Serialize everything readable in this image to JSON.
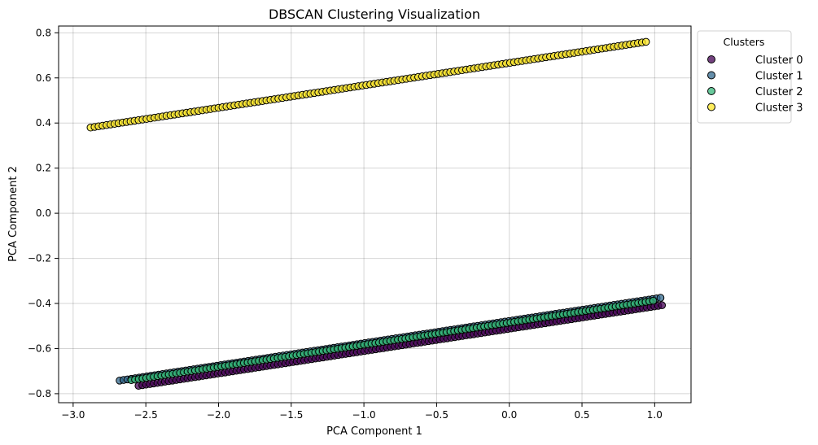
{
  "chart_data": {
    "type": "scatter",
    "title": "DBSCAN Clustering Visualization",
    "xlabel": "PCA Component 1",
    "ylabel": "PCA Component 2",
    "xlim": [
      -3.1,
      1.25
    ],
    "ylim": [
      -0.84,
      0.83
    ],
    "xticks": [
      -3.0,
      -2.5,
      -2.0,
      -1.5,
      -1.0,
      -0.5,
      0.0,
      0.5,
      1.0
    ],
    "xtick_labels": [
      "−3.0",
      "−2.5",
      "−2.0",
      "−1.5",
      "−1.0",
      "−0.5",
      "0.0",
      "0.5",
      "1.0"
    ],
    "yticks": [
      -0.8,
      -0.6,
      -0.4,
      -0.2,
      0.0,
      0.2,
      0.4,
      0.6,
      0.8
    ],
    "ytick_labels": [
      "−0.8",
      "−0.6",
      "−0.4",
      "−0.2",
      "0.0",
      "0.2",
      "0.4",
      "0.6",
      "0.8"
    ],
    "grid": true,
    "legend": {
      "title": "Clusters",
      "placement": "outside-upper-right"
    },
    "series": [
      {
        "name": "Cluster 0",
        "color": "#440154",
        "x_range": [
          -2.55,
          1.05
        ],
        "y_range": [
          -0.765,
          -0.408
        ],
        "num_points": 140
      },
      {
        "name": "Cluster 1",
        "color": "#31688e",
        "x_range": [
          -2.68,
          1.04
        ],
        "y_range": [
          -0.742,
          -0.375
        ],
        "num_points": 140
      },
      {
        "name": "Cluster 2",
        "color": "#35b779",
        "x_range": [
          -2.6,
          0.99
        ],
        "y_range": [
          -0.74,
          -0.388
        ],
        "num_points": 140
      },
      {
        "name": "Cluster 3",
        "color": "#fde725",
        "x_range": [
          -2.88,
          0.94
        ],
        "y_range": [
          0.38,
          0.76
        ],
        "num_points": 140
      }
    ],
    "marker": {
      "edgecolor": "#000000",
      "alpha": 0.75
    }
  }
}
